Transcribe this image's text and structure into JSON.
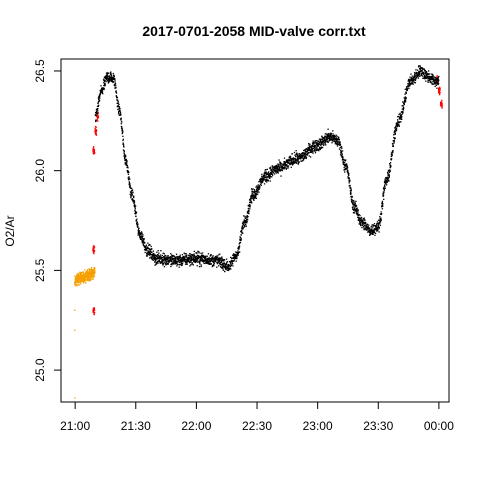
{
  "chart_data": {
    "type": "scatter",
    "title": "2017-0701-2058 MID-valve corr.txt",
    "xlabel": "",
    "ylabel": "O2/Ar",
    "x_ticks": [
      "21:00",
      "21:30",
      "22:00",
      "22:30",
      "23:00",
      "23:30",
      "00:00"
    ],
    "x_tick_minutes": [
      1260,
      1290,
      1320,
      1350,
      1380,
      1410,
      1440
    ],
    "xlim_minutes": [
      1253,
      1445
    ],
    "y_ticks": [
      "25.0",
      "25.5",
      "26.0",
      "26.5"
    ],
    "y_tick_values": [
      25.0,
      25.5,
      26.0,
      26.5
    ],
    "ylim": [
      24.84,
      26.56
    ],
    "grid": false,
    "series": [
      {
        "color": "#f5a000",
        "x_range": [
          "20:59",
          "21:09"
        ],
        "points": [
          {
            "x": "20:59",
            "y": 24.86
          },
          {
            "x": "20:59",
            "y": 25.2
          },
          {
            "x": "20:59",
            "y": 25.3
          },
          {
            "x": "20:59",
            "y": 25.44
          },
          {
            "x": "21:00",
            "y": 25.46
          },
          {
            "x": "21:02",
            "y": 25.46
          },
          {
            "x": "21:04",
            "y": 25.47
          },
          {
            "x": "21:06",
            "y": 25.47
          },
          {
            "x": "21:08",
            "y": 25.48
          },
          {
            "x": "21:09",
            "y": 25.49
          }
        ],
        "noise": 0.04
      },
      {
        "color": "#ff0000",
        "points": [
          {
            "x": "21:08",
            "y": 25.3
          },
          {
            "x": "21:08",
            "y": 25.6
          },
          {
            "x": "21:08",
            "y": 26.1
          },
          {
            "x": "21:09",
            "y": 26.2
          },
          {
            "x": "21:10",
            "y": 26.27
          },
          {
            "x": "23:58",
            "y": 26.45
          },
          {
            "x": "23:59",
            "y": 26.4
          },
          {
            "x": "00:00",
            "y": 26.33
          }
        ],
        "noise": 0.03
      },
      {
        "color": "#000000",
        "x_range": [
          "21:10",
          "00:00"
        ],
        "trend": [
          {
            "x": "21:10",
            "y": 26.27
          },
          {
            "x": "21:13",
            "y": 26.4
          },
          {
            "x": "21:16",
            "y": 26.47
          },
          {
            "x": "21:19",
            "y": 26.46
          },
          {
            "x": "21:22",
            "y": 26.3
          },
          {
            "x": "21:25",
            "y": 26.05
          },
          {
            "x": "21:28",
            "y": 25.88
          },
          {
            "x": "21:32",
            "y": 25.68
          },
          {
            "x": "21:36",
            "y": 25.6
          },
          {
            "x": "21:40",
            "y": 25.56
          },
          {
            "x": "21:50",
            "y": 25.55
          },
          {
            "x": "22:00",
            "y": 25.56
          },
          {
            "x": "22:10",
            "y": 25.55
          },
          {
            "x": "22:16",
            "y": 25.52
          },
          {
            "x": "22:20",
            "y": 25.58
          },
          {
            "x": "22:24",
            "y": 25.75
          },
          {
            "x": "22:28",
            "y": 25.88
          },
          {
            "x": "22:34",
            "y": 25.97
          },
          {
            "x": "22:40",
            "y": 26.01
          },
          {
            "x": "22:50",
            "y": 26.06
          },
          {
            "x": "23:00",
            "y": 26.13
          },
          {
            "x": "23:06",
            "y": 26.17
          },
          {
            "x": "23:10",
            "y": 26.15
          },
          {
            "x": "23:14",
            "y": 26.02
          },
          {
            "x": "23:18",
            "y": 25.82
          },
          {
            "x": "23:22",
            "y": 25.74
          },
          {
            "x": "23:26",
            "y": 25.7
          },
          {
            "x": "23:30",
            "y": 25.72
          },
          {
            "x": "23:34",
            "y": 25.95
          },
          {
            "x": "23:40",
            "y": 26.25
          },
          {
            "x": "23:46",
            "y": 26.45
          },
          {
            "x": "23:51",
            "y": 26.5
          },
          {
            "x": "23:55",
            "y": 26.47
          },
          {
            "x": "23:58",
            "y": 26.45
          }
        ],
        "noise": 0.045
      }
    ]
  }
}
